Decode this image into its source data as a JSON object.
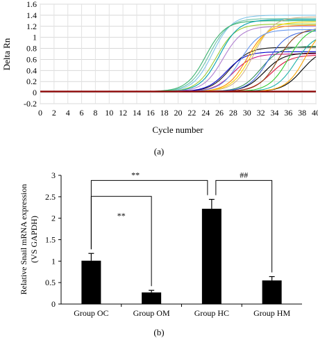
{
  "chart_data": [
    {
      "type": "line",
      "panel_label": "(a)",
      "title": "",
      "xlabel": "Cycle number",
      "ylabel": "Delta Rn",
      "xlim": [
        0,
        40
      ],
      "ylim": [
        -0.2,
        1.6
      ],
      "x_ticks": [
        "0",
        "2",
        "4",
        "6",
        "8",
        "10",
        "12",
        "14",
        "16",
        "18",
        "20",
        "22",
        "24",
        "26",
        "28",
        "30",
        "32",
        "34",
        "36",
        "38",
        "40"
      ],
      "y_ticks": [
        "1.6",
        "1.4",
        "1.2",
        "1",
        "0.8",
        "0.6",
        "0.4",
        "0.2",
        "0",
        "-0.2"
      ],
      "grid": true,
      "legend": "none",
      "threshold": 0.02,
      "series": [
        {
          "color": "#7fc4e8",
          "ct": 22.0,
          "plateau": 1.38
        },
        {
          "color": "#66c2a5",
          "ct": 21.5,
          "plateau": 1.32
        },
        {
          "color": "#3cb371",
          "ct": 21.0,
          "plateau": 1.28
        },
        {
          "color": "#9acd32",
          "ct": 22.5,
          "plateau": 1.22
        },
        {
          "color": "#00a0b0",
          "ct": 23.0,
          "plateau": 1.3
        },
        {
          "color": "#b07fd0",
          "ct": 23.5,
          "plateau": 1.18
        },
        {
          "color": "#1a1a1a",
          "ct": 24.5,
          "plateau": 0.8
        },
        {
          "color": "#0000cc",
          "ct": 24.0,
          "plateau": 0.72
        },
        {
          "color": "#c71585",
          "ct": 25.0,
          "plateau": 0.68
        },
        {
          "color": "#ff8c00",
          "ct": 27.0,
          "plateau": 1.2
        },
        {
          "color": "#ffd700",
          "ct": 27.5,
          "plateau": 1.26
        },
        {
          "color": "#d2b48c",
          "ct": 28.0,
          "plateau": 1.35
        },
        {
          "color": "#2e8b57",
          "ct": 29.0,
          "plateau": 0.82
        },
        {
          "color": "#000000",
          "ct": 29.5,
          "plateau": 0.7
        },
        {
          "color": "#4169e1",
          "ct": 30.0,
          "plateau": 1.1
        },
        {
          "color": "#dc143c",
          "ct": 30.5,
          "plateau": 0.66
        },
        {
          "color": "#8b4513",
          "ct": 31.5,
          "plateau": 1.15
        },
        {
          "color": "#32cd32",
          "ct": 33.0,
          "plateau": 1.18
        },
        {
          "color": "#20b2aa",
          "ct": 34.0,
          "plateau": 1.05
        },
        {
          "color": "#000000",
          "ct": 35.0,
          "plateau": 0.78
        },
        {
          "color": "#ffa500",
          "ct": 35.5,
          "plateau": 1.25
        },
        {
          "color": "#6495ed",
          "ct": 26.0,
          "plateau": 1.12
        }
      ]
    },
    {
      "type": "bar",
      "panel_label": "(b)",
      "title": "",
      "xlabel": "",
      "ylabel": "Relative Snail mRNA expression",
      "ylabel2": "(VS GAPDH)",
      "categories": [
        "Group OC",
        "Group OM",
        "Group HC",
        "Group HM"
      ],
      "values": [
        1.01,
        0.27,
        2.22,
        0.55
      ],
      "errors": [
        0.17,
        0.05,
        0.22,
        0.09
      ],
      "ylim": [
        0,
        3
      ],
      "y_ticks": [
        "3",
        "2.5",
        "2",
        "1.5",
        "1",
        "0.5",
        "0"
      ],
      "bar_color": "#000000",
      "grid": false,
      "legend": "none",
      "brackets": [
        {
          "from": 0,
          "to": 2,
          "label": "**"
        },
        {
          "from": 0,
          "to": 1,
          "label": "**"
        },
        {
          "from": 2,
          "to": 3,
          "label": "##"
        }
      ]
    }
  ]
}
